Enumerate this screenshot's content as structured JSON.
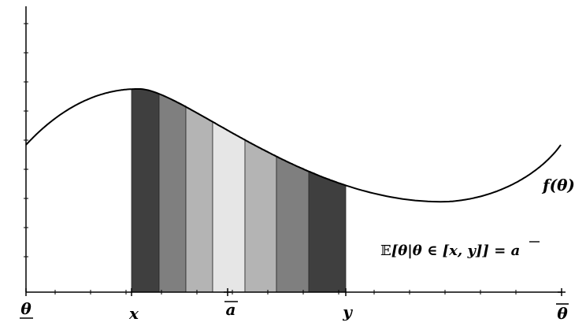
{
  "figure": {
    "curve_label": "f(θ)",
    "axis_labels": {
      "theta_low": "θ",
      "x": "x",
      "a_bar": "a",
      "y": "y",
      "theta_high": "θ"
    },
    "equation": {
      "prefix": "𝔼",
      "body": "[θ|θ ∈ [x, y]] = ",
      "rhs": "a"
    },
    "colors": {
      "curve": "#000000",
      "axis": "#000000",
      "strips": [
        "#3f3f3f",
        "#7f7f7f",
        "#b4b4b4",
        "#e6e6e6",
        "#b4b4b4",
        "#7f7f7f",
        "#3f3f3f"
      ]
    }
  }
}
